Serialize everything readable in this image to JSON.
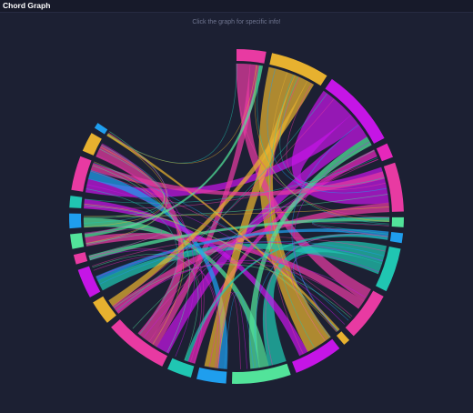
{
  "panel": {
    "title": "Chord Graph",
    "hint": "Click the graph for specific info!"
  },
  "colors": {
    "background": "#1c2033",
    "pink": "#e83aa2",
    "gold": "#e7b12f",
    "purple": "#c515e6",
    "mint": "#52e39a",
    "teal": "#20c6b2",
    "blue": "#1f9eee",
    "magenta": "#e727bb"
  },
  "chart_data": {
    "type": "chord",
    "title": "",
    "groups": [
      {
        "color": "pink",
        "value": 3
      },
      {
        "color": "gold",
        "value": 6
      },
      {
        "color": "purple",
        "value": 8
      },
      {
        "color": "magenta",
        "value": 1.5
      },
      {
        "color": "pink",
        "value": 5
      },
      {
        "color": "mint",
        "value": 1
      },
      {
        "color": "blue",
        "value": 1
      },
      {
        "color": "teal",
        "value": 4.5
      },
      {
        "color": "pink",
        "value": 5
      },
      {
        "color": "gold",
        "value": 0.7
      },
      {
        "color": "purple",
        "value": 5
      },
      {
        "color": "mint",
        "value": 6
      },
      {
        "color": "blue",
        "value": 3
      },
      {
        "color": "teal",
        "value": 2.5
      },
      {
        "color": "pink",
        "value": 6.5
      },
      {
        "color": "gold",
        "value": 2.5
      },
      {
        "color": "purple",
        "value": 3
      },
      {
        "color": "pink",
        "value": 1
      },
      {
        "color": "mint",
        "value": 1.5
      },
      {
        "color": "blue",
        "value": 1.5
      },
      {
        "color": "teal",
        "value": 1.2
      },
      {
        "color": "pink",
        "value": 3.5
      },
      {
        "color": "gold",
        "value": 2
      },
      {
        "color": "blue",
        "value": 0.6
      }
    ],
    "links": [
      {
        "source": 1,
        "target": 10,
        "value": 3,
        "color": "gold"
      },
      {
        "source": 2,
        "target": 4,
        "value": 4,
        "color": "purple"
      },
      {
        "source": 2,
        "target": 21,
        "value": 1.5,
        "color": "purple"
      },
      {
        "source": 2,
        "target": 14,
        "value": 1.5,
        "color": "purple"
      },
      {
        "source": 0,
        "target": 8,
        "value": 1.5,
        "color": "pink"
      },
      {
        "source": 0,
        "target": 14,
        "value": 1,
        "color": "pink"
      },
      {
        "source": 7,
        "target": 11,
        "value": 2,
        "color": "teal"
      },
      {
        "source": 7,
        "target": 16,
        "value": 1.2,
        "color": "teal"
      },
      {
        "source": 4,
        "target": 15,
        "value": 1,
        "color": "pink"
      },
      {
        "source": 11,
        "target": 19,
        "value": 1,
        "color": "mint"
      },
      {
        "source": 12,
        "target": 21,
        "value": 1,
        "color": "blue"
      },
      {
        "source": 14,
        "target": 22,
        "value": 1.5,
        "color": "pink"
      },
      {
        "source": 8,
        "target": 18,
        "value": 1,
        "color": "pink"
      },
      {
        "source": 10,
        "target": 20,
        "value": 1,
        "color": "purple"
      },
      {
        "source": 3,
        "target": 13,
        "value": 0.8,
        "color": "magenta"
      },
      {
        "source": 1,
        "target": 12,
        "value": 1.5,
        "color": "gold"
      },
      {
        "source": 5,
        "target": 17,
        "value": 0.5,
        "color": "mint"
      },
      {
        "source": 6,
        "target": 16,
        "value": 0.5,
        "color": "blue"
      },
      {
        "source": 9,
        "target": 23,
        "value": 0.3,
        "color": "gold"
      },
      {
        "source": 11,
        "target": 2,
        "value": 1,
        "color": "mint"
      },
      {
        "source": 15,
        "target": 1,
        "value": 0.8,
        "color": "gold"
      },
      {
        "source": 13,
        "target": 6,
        "value": 0.4,
        "color": "teal"
      },
      {
        "source": 18,
        "target": 0,
        "value": 0.4,
        "color": "mint"
      },
      {
        "source": 21,
        "target": 4,
        "value": 0.8,
        "color": "pink"
      }
    ]
  }
}
